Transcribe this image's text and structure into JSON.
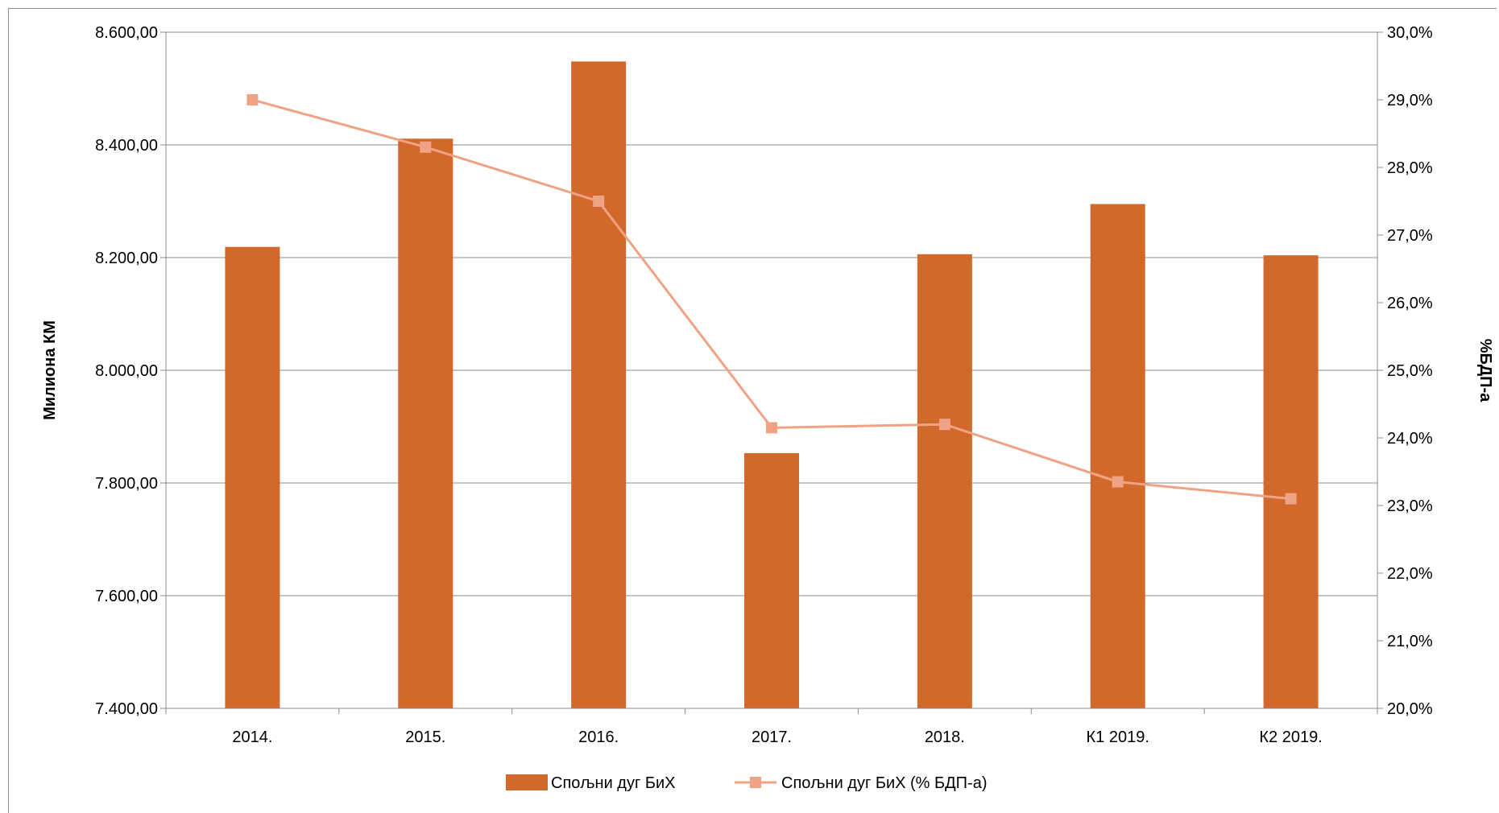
{
  "chart_data": {
    "type": "bar",
    "title": "",
    "categories": [
      "2014.",
      "2015.",
      "2016.",
      "2017.",
      "2018.",
      "К1 2019.",
      "К2 2019."
    ],
    "series": [
      {
        "name": "Спољни дуг БиХ",
        "type": "bar",
        "axis": "left",
        "color": "#d2692a",
        "values": [
          8219,
          8411,
          8548,
          7853,
          8206,
          8295,
          8204
        ]
      },
      {
        "name": "Спољни дуг БиХ (% БДП-а)",
        "type": "line",
        "axis": "right",
        "color": "#efa384",
        "marker": "square",
        "values": [
          29.0,
          28.3,
          27.5,
          24.15,
          24.2,
          23.35,
          23.1
        ]
      }
    ],
    "y_left": {
      "label": "Милиона КМ",
      "ylim": [
        7400,
        8600
      ],
      "ticks": [
        "7.400,00",
        "7.600,00",
        "7.800,00",
        "8.000,00",
        "8.200,00",
        "8.400,00",
        "8.600,00"
      ]
    },
    "y_right": {
      "label": "%БДП-а",
      "ylim": [
        20,
        30
      ],
      "ticks": [
        "20,0%",
        "21,0%",
        "22,0%",
        "23,0%",
        "24,0%",
        "25,0%",
        "26,0%",
        "27,0%",
        "28,0%",
        "29,0%",
        "30,0%"
      ]
    },
    "grid": true,
    "legend": "bottom"
  }
}
